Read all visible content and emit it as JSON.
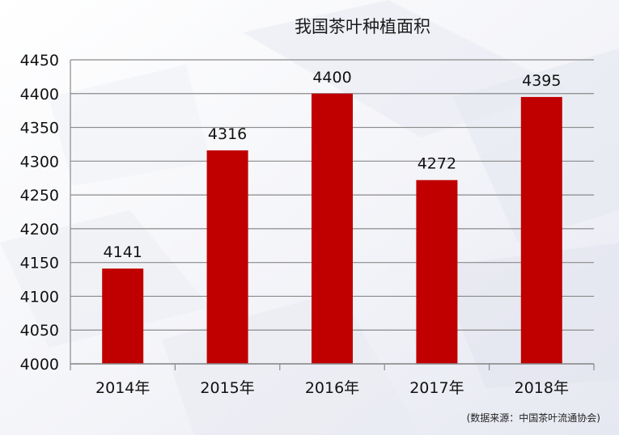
{
  "chart_data": {
    "type": "bar",
    "title": "我国茶叶种植面积",
    "categories": [
      "2014年",
      "2015年",
      "2016年",
      "2017年",
      "2018年"
    ],
    "values": [
      4141,
      4316,
      4400,
      4272,
      4395
    ],
    "ylim": [
      4000,
      4450
    ],
    "yticks": [
      4000,
      4050,
      4100,
      4150,
      4200,
      4250,
      4300,
      4350,
      4400,
      4450
    ],
    "grid": true,
    "bar_color": "#c00000",
    "data_labels": [
      "4141",
      "4316",
      "4400",
      "4272",
      "4395"
    ]
  },
  "source": "(数据来源：中国茶叶流通协会)"
}
